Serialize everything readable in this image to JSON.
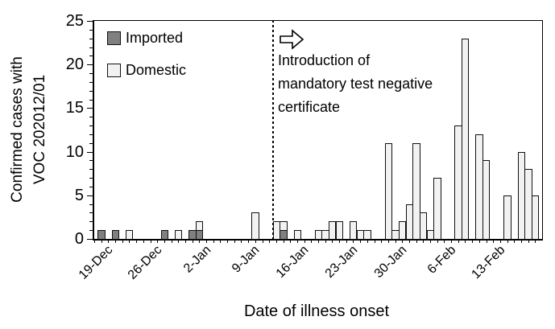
{
  "chart_data": {
    "type": "bar",
    "stacked": true,
    "xlabel": "Date of illness onset",
    "ylabel_lines": [
      "Confirmed cases with",
      "VOC 202012/01"
    ],
    "ylim": [
      0,
      25
    ],
    "y_major_ticks": [
      0,
      5,
      10,
      15,
      20,
      25
    ],
    "y_minor_step": 1,
    "grid": "off",
    "legend_position": "top-left-inside",
    "categories": [
      "19-Dec",
      "20-Dec",
      "21-Dec",
      "22-Dec",
      "23-Dec",
      "24-Dec",
      "25-Dec",
      "26-Dec",
      "27-Dec",
      "28-Dec",
      "29-Dec",
      "30-Dec",
      "31-Dec",
      "1-Jan",
      "2-Jan",
      "3-Jan",
      "4-Jan",
      "5-Jan",
      "6-Jan",
      "7-Jan",
      "8-Jan",
      "9-Jan",
      "10-Jan",
      "11-Jan",
      "12-Jan",
      "13-Jan",
      "14-Jan",
      "15-Jan",
      "16-Jan",
      "17-Jan",
      "18-Jan",
      "19-Jan",
      "20-Jan",
      "21-Jan",
      "22-Jan",
      "23-Jan",
      "24-Jan",
      "25-Jan",
      "26-Jan",
      "27-Jan",
      "28-Jan",
      "29-Jan",
      "30-Jan",
      "31-Jan",
      "1-Feb",
      "2-Feb",
      "3-Feb",
      "4-Feb",
      "5-Feb",
      "6-Feb",
      "7-Feb",
      "8-Feb",
      "9-Feb",
      "10-Feb",
      "11-Feb",
      "12-Feb",
      "13-Feb",
      "14-Feb",
      "15-Feb",
      "16-Feb",
      "17-Feb",
      "18-Feb",
      "19-Feb",
      "20-Feb"
    ],
    "x_labeled_indices": [
      0,
      7,
      14,
      21,
      28,
      35,
      42,
      49,
      56
    ],
    "x_tick_labels": [
      "19-Dec",
      "26-Dec",
      "2-Jan",
      "9-Jan",
      "16-Jan",
      "23-Jan",
      "30-Jan",
      "6-Feb",
      "13-Feb"
    ],
    "series": [
      {
        "name": "Imported",
        "color": "#808080",
        "values": [
          0,
          1,
          0,
          1,
          0,
          0,
          0,
          0,
          0,
          0,
          1,
          0,
          0,
          0,
          1,
          1,
          0,
          0,
          0,
          0,
          0,
          0,
          0,
          0,
          0,
          0,
          0,
          1,
          0,
          0,
          0,
          0,
          0,
          0,
          0,
          0,
          0,
          0,
          0,
          0,
          0,
          0,
          0,
          0,
          0,
          0,
          0,
          0,
          0,
          0,
          0,
          0,
          0,
          0,
          0,
          0,
          0,
          0,
          0,
          0,
          0,
          0,
          0,
          0
        ]
      },
      {
        "name": "Domestic",
        "color": "#f2f2f2",
        "values": [
          0,
          0,
          0,
          0,
          0,
          1,
          0,
          0,
          0,
          0,
          0,
          0,
          1,
          0,
          0,
          1,
          0,
          0,
          0,
          0,
          0,
          0,
          0,
          3,
          0,
          0,
          2,
          1,
          0,
          1,
          0,
          0,
          1,
          1,
          2,
          2,
          0,
          2,
          1,
          1,
          0,
          0,
          11,
          1,
          2,
          4,
          11,
          3,
          1,
          7,
          0,
          0,
          13,
          23,
          0,
          12,
          9,
          0,
          0,
          5,
          0,
          10,
          8,
          5
        ]
      }
    ],
    "annotation": {
      "lines": [
        "Introduction of",
        "mandatory test negative",
        "certificate"
      ],
      "arrow_icon": "block-arrow-right-icon",
      "vline_after_category": "13-Jan",
      "vline_style": "dotted"
    },
    "colors": {
      "bar_border": "#111111",
      "axis": "#000000",
      "text": "#000000",
      "background": "#ffffff"
    }
  }
}
